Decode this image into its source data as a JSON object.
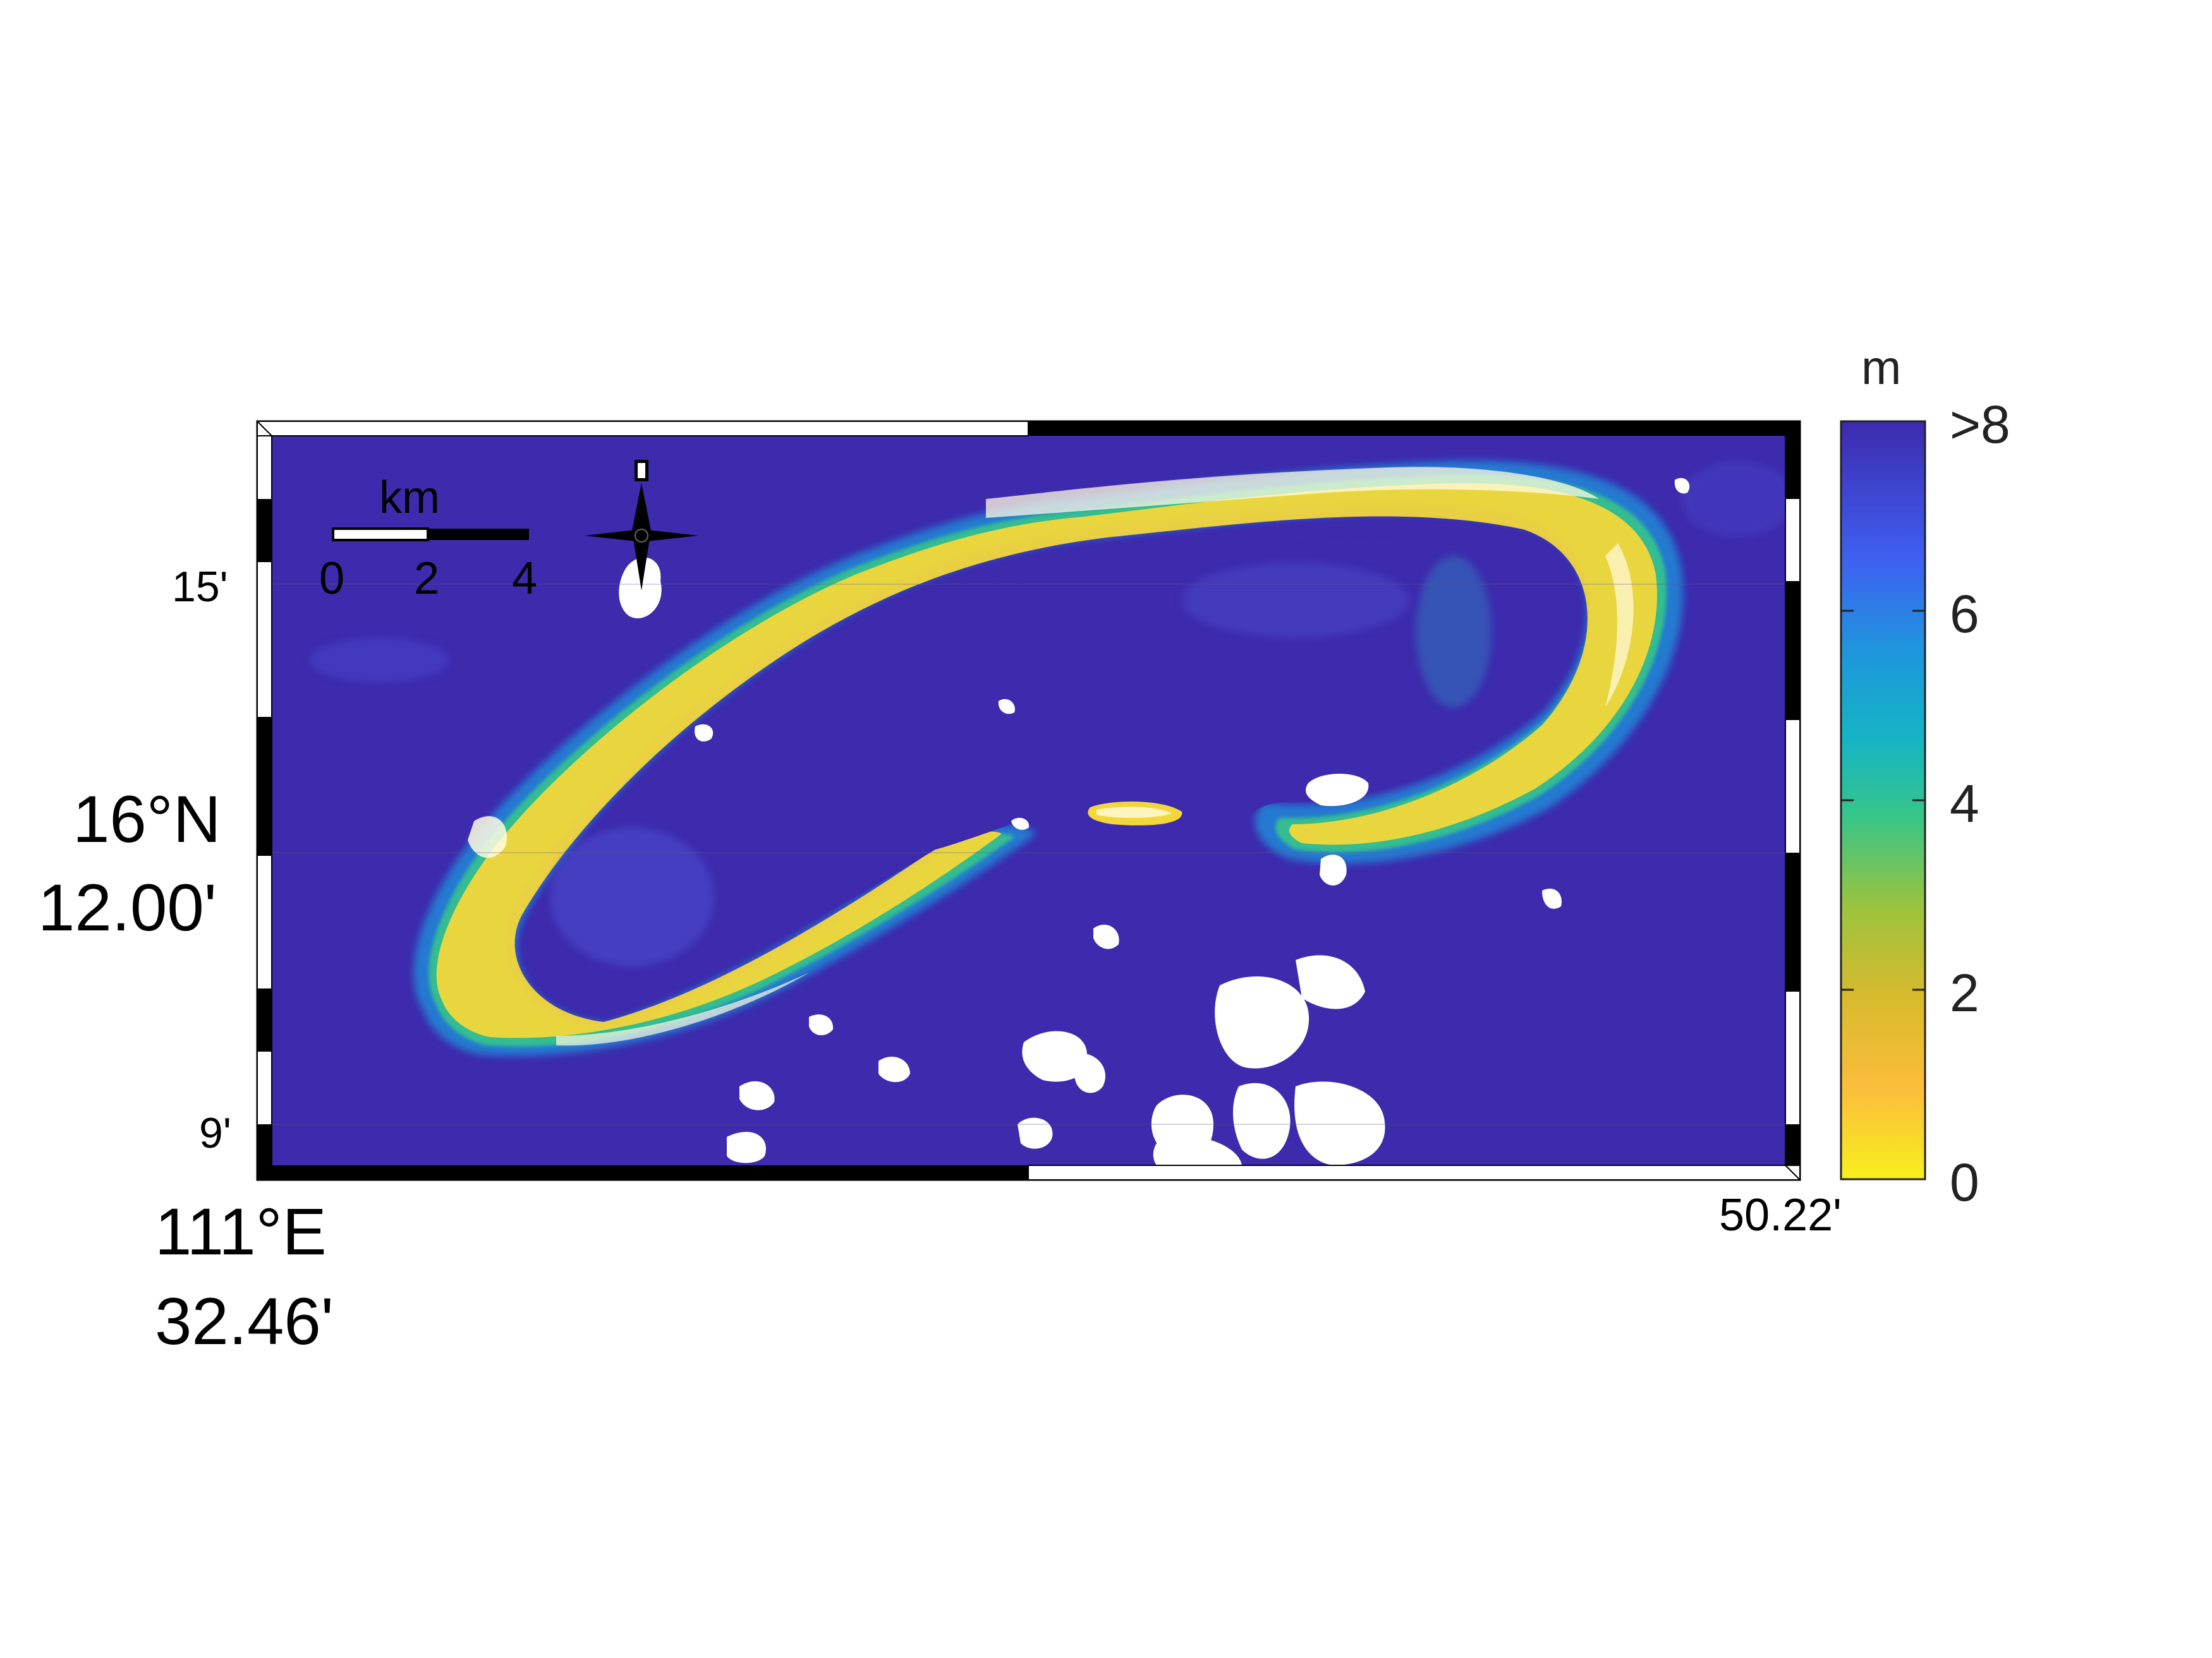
{
  "map": {
    "lat_labels": {
      "top_minor": "15'",
      "main_deg": "16°N",
      "main_min": "12.00'",
      "bottom_minor": "9'"
    },
    "lon_labels": {
      "left_deg": "111°E",
      "left_min": "32.46'",
      "right_min": "50.22'"
    },
    "scale_bar": {
      "unit": "km",
      "ticks": [
        "0",
        "2",
        "4"
      ]
    },
    "north_arrow": {
      "label": "N",
      "icon": "north-arrow-icon"
    },
    "colors": {
      "deep_water": "#3d2aad",
      "reef_shallow": "#f7ec1d",
      "reef_mid": "#26bfa5",
      "cloud": "#ffffff"
    }
  },
  "colorbar": {
    "unit": "m",
    "tick_labels": [
      ">8",
      "6",
      "4",
      "2",
      "0"
    ],
    "range": [
      0,
      8
    ],
    "colormap": [
      "#3d2aad",
      "#3f5ff0",
      "#1f95dd",
      "#16b4c4",
      "#36c58a",
      "#9bc33e",
      "#d8ba2e",
      "#fbbd3c",
      "#f7f01d"
    ]
  }
}
